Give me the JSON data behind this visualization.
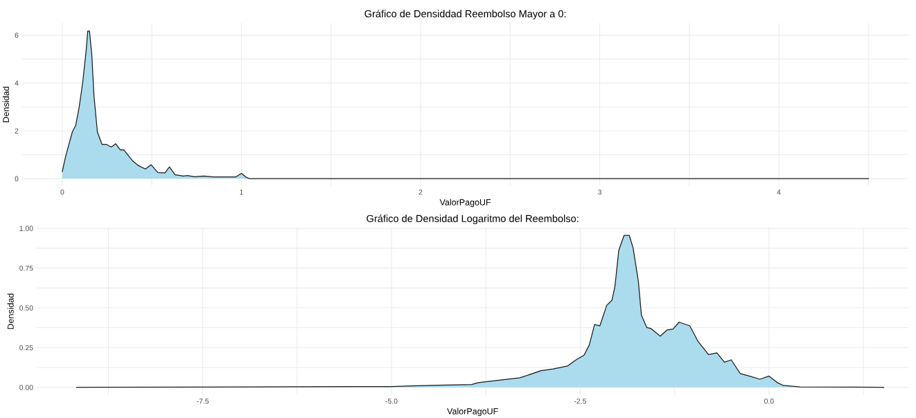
{
  "chart_data": [
    {
      "type": "area",
      "title": "Gráfico de Densiddad Reembolso Mayor a 0:",
      "xlabel": "ValorPagoUF",
      "ylabel": "Densidad",
      "xlim": [
        -0.225,
        4.725
      ],
      "ylim": [
        -0.31,
        6.51
      ],
      "xticks": [
        0,
        {
          "value": 0.5,
          "label": null
        },
        1,
        {
          "value": 1.5,
          "label": null
        },
        2,
        {
          "value": 2.5,
          "label": null
        },
        3,
        {
          "value": 3.5,
          "label": null
        },
        4,
        {
          "value": 4.5,
          "label": null
        }
      ],
      "yticks": [
        0,
        {
          "value": 1,
          "label": null
        },
        2,
        {
          "value": 3,
          "label": null
        },
        4,
        {
          "value": 5,
          "label": null
        },
        6
      ],
      "grid": true,
      "series": [
        {
          "color": "#aadcee",
          "x": [
            0,
            0.018,
            0.037,
            0.056,
            0.075,
            0.094,
            0.114,
            0.133,
            0.142,
            0.152,
            0.165,
            0.177,
            0.196,
            0.222,
            0.247,
            0.273,
            0.298,
            0.324,
            0.343,
            0.369,
            0.394,
            0.426,
            0.464,
            0.496,
            0.534,
            0.573,
            0.598,
            0.63,
            0.675,
            0.7,
            0.738,
            0.79,
            0.841,
            0.968,
            1.0,
            1.03,
            1.045,
            2.0,
            3.0,
            4.5
          ],
          "values": [
            0.3,
            0.91,
            1.43,
            1.95,
            2.23,
            2.98,
            4.02,
            5.34,
            6.17,
            6.17,
            5.15,
            3.46,
            1.95,
            1.43,
            1.43,
            1.32,
            1.46,
            1.2,
            1.21,
            0.96,
            0.73,
            0.54,
            0.4,
            0.58,
            0.25,
            0.24,
            0.49,
            0.16,
            0.11,
            0.13,
            0.08,
            0.11,
            0.07,
            0.07,
            0.22,
            0.04,
            0.0,
            0.0,
            0.0,
            0.0
          ]
        }
      ]
    },
    {
      "type": "area",
      "title": "Gráfico de Densidad Logaritmo del Reembolso:",
      "xlabel": "ValorPagoUF",
      "ylabel": "Densidad",
      "xlim": [
        -9.7,
        1.85
      ],
      "ylim": [
        -0.048,
        1.003
      ],
      "xticks": [
        {
          "value": -8.75,
          "label": null
        },
        -7.5,
        {
          "value": -6.25,
          "label": null
        },
        {
          "value": -5.0,
          "label": "-5.0"
        },
        {
          "value": -3.75,
          "label": null
        },
        -2.5,
        {
          "value": -1.25,
          "label": null
        },
        {
          "value": 0,
          "label": "0.0"
        },
        {
          "value": 1.25,
          "label": null
        }
      ],
      "yticks": [
        {
          "value": 0,
          "label": "0.00"
        },
        {
          "value": 0.125,
          "label": null
        },
        0.25,
        {
          "value": 0.375,
          "label": null
        },
        {
          "value": 0.5,
          "label": "0.50"
        },
        {
          "value": 0.625,
          "label": null
        },
        0.75,
        {
          "value": 0.875,
          "label": null
        },
        {
          "value": 1,
          "label": "1.00"
        }
      ],
      "grid": true,
      "series": [
        {
          "color": "#aadcee",
          "x": [
            -9.17,
            -7.0,
            -5.0,
            -4.82,
            -4.49,
            -3.94,
            -3.85,
            -3.3,
            -3.02,
            -2.86,
            -2.67,
            -2.56,
            -2.45,
            -2.38,
            -2.31,
            -2.24,
            -2.15,
            -2.08,
            -2.04,
            -1.99,
            -1.92,
            -1.85,
            -1.8,
            -1.73,
            -1.69,
            -1.62,
            -1.56,
            -1.44,
            -1.35,
            -1.27,
            -1.19,
            -1.05,
            -0.94,
            -0.8,
            -0.69,
            -0.59,
            -0.5,
            -0.38,
            -0.26,
            -0.12,
            0.0,
            0.11,
            0.19,
            0.41,
            1.1,
            1.52
          ],
          "values": [
            0.0,
            0.003,
            0.005,
            0.008,
            0.012,
            0.018,
            0.03,
            0.06,
            0.105,
            0.116,
            0.134,
            0.172,
            0.202,
            0.267,
            0.395,
            0.387,
            0.515,
            0.548,
            0.636,
            0.861,
            0.955,
            0.955,
            0.877,
            0.666,
            0.455,
            0.377,
            0.369,
            0.322,
            0.361,
            0.367,
            0.41,
            0.387,
            0.289,
            0.206,
            0.217,
            0.158,
            0.173,
            0.086,
            0.071,
            0.051,
            0.071,
            0.03,
            0.012,
            0.003,
            0.002,
            0.0
          ]
        }
      ]
    }
  ]
}
